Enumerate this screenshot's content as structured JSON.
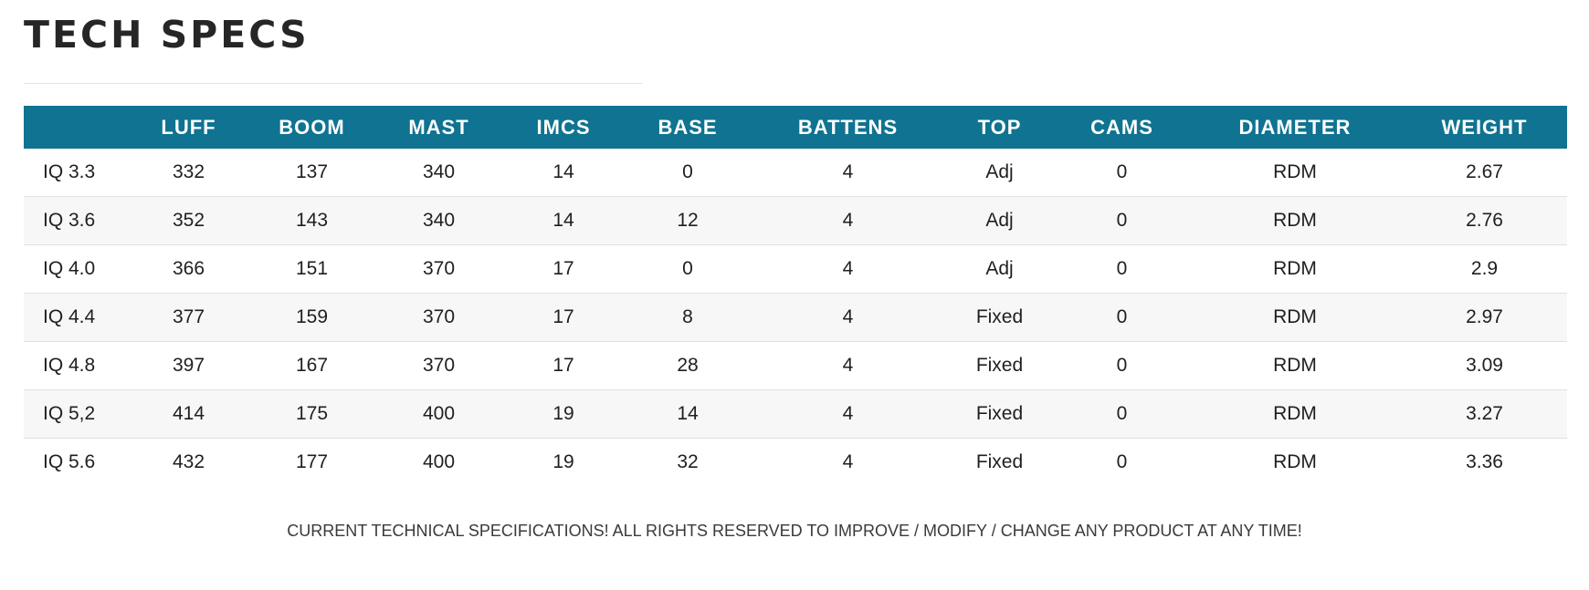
{
  "page": {
    "title": "TECH SPECS",
    "disclaimer": "CURRENT TECHNICAL SPECIFICATIONS! ALL RIGHTS RESERVED TO IMPROVE / MODIFY / CHANGE ANY PRODUCT AT ANY TIME!"
  },
  "colors": {
    "header_background": "#0f7391",
    "header_text": "#ffffff",
    "stripe_row": "#f7f7f7"
  },
  "table": {
    "headers": [
      "",
      "LUFF",
      "BOOM",
      "MAST",
      "IMCS",
      "BASE",
      "BATTENS",
      "TOP",
      "CAMS",
      "DIAMETER",
      "WEIGHT"
    ],
    "rows": [
      [
        "IQ 3.3",
        "332",
        "137",
        "340",
        "14",
        "0",
        "4",
        "Adj",
        "0",
        "RDM",
        "2.67"
      ],
      [
        "IQ 3.6",
        "352",
        "143",
        "340",
        "14",
        "12",
        "4",
        "Adj",
        "0",
        "RDM",
        "2.76"
      ],
      [
        "IQ 4.0",
        "366",
        "151",
        "370",
        "17",
        "0",
        "4",
        "Adj",
        "0",
        "RDM",
        "2.9"
      ],
      [
        "IQ 4.4",
        "377",
        "159",
        "370",
        "17",
        "8",
        "4",
        "Fixed",
        "0",
        "RDM",
        "2.97"
      ],
      [
        "IQ 4.8",
        "397",
        "167",
        "370",
        "17",
        "28",
        "4",
        "Fixed",
        "0",
        "RDM",
        "3.09"
      ],
      [
        "IQ 5,2",
        "414",
        "175",
        "400",
        "19",
        "14",
        "4",
        "Fixed",
        "0",
        "RDM",
        "3.27"
      ],
      [
        "IQ 5.6",
        "432",
        "177",
        "400",
        "19",
        "32",
        "4",
        "Fixed",
        "0",
        "RDM",
        "3.36"
      ]
    ]
  }
}
